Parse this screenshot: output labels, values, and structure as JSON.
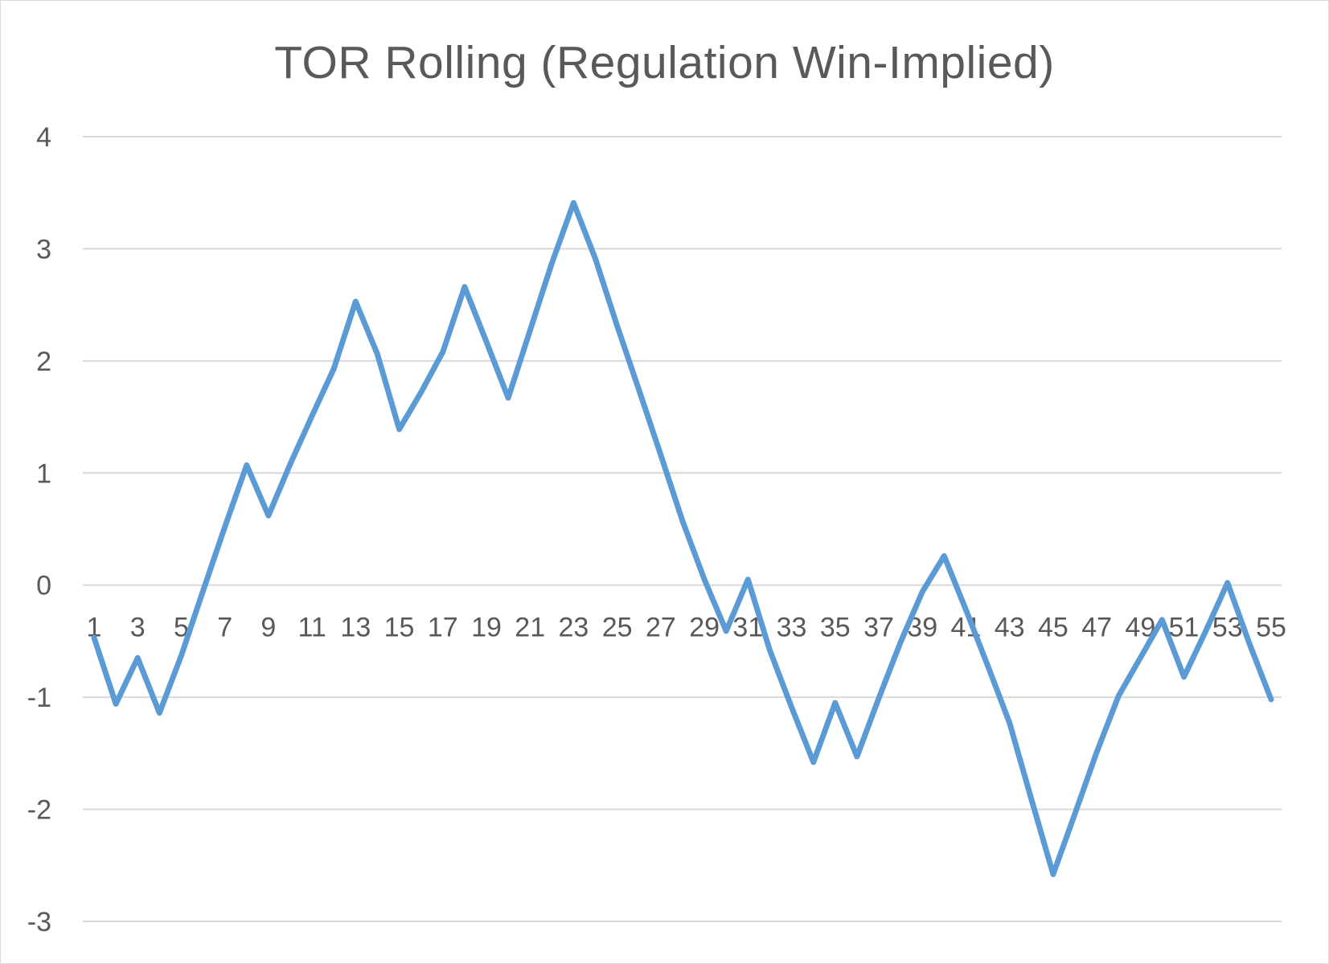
{
  "chart_data": {
    "type": "line",
    "title": "TOR Rolling (Regulation Win-Implied)",
    "xlabel": "",
    "ylabel": "",
    "ylim": [
      -3,
      4
    ],
    "yticks": [
      4,
      3,
      2,
      1,
      0,
      -1,
      -2,
      -3
    ],
    "grid": true,
    "legend": "none",
    "x": [
      1,
      2,
      3,
      4,
      5,
      6,
      7,
      8,
      9,
      10,
      11,
      12,
      13,
      14,
      15,
      16,
      17,
      18,
      19,
      20,
      21,
      22,
      23,
      24,
      25,
      26,
      27,
      28,
      29,
      30,
      31,
      32,
      33,
      34,
      35,
      36,
      37,
      38,
      39,
      40,
      41,
      42,
      43,
      44,
      45,
      46,
      47,
      48,
      49,
      50,
      51,
      52,
      53,
      54,
      55
    ],
    "x_tick_labels": [
      "1",
      "3",
      "5",
      "7",
      "9",
      "11",
      "13",
      "15",
      "17",
      "19",
      "21",
      "23",
      "25",
      "27",
      "29",
      "31",
      "33",
      "35",
      "37",
      "39",
      "41",
      "43",
      "45",
      "47",
      "49",
      "51",
      "53",
      "55"
    ],
    "series": [
      {
        "color": "#5b9bd5",
        "values": [
          -0.47,
          -1.06,
          -0.65,
          -1.14,
          -0.63,
          -0.05,
          0.52,
          1.07,
          0.62,
          1.08,
          1.51,
          1.93,
          2.53,
          2.06,
          1.39,
          1.72,
          2.08,
          2.66,
          2.17,
          1.67,
          2.27,
          2.87,
          3.41,
          2.91,
          2.31,
          1.74,
          1.16,
          0.57,
          0.05,
          -0.41,
          0.05,
          -0.58,
          -1.09,
          -1.58,
          -1.05,
          -1.53,
          -1.01,
          -0.51,
          -0.06,
          0.26,
          -0.22,
          -0.72,
          -1.23,
          -1.91,
          -2.58,
          -2.04,
          -1.49,
          -0.99,
          -0.65,
          -0.31,
          -0.82,
          -0.41,
          0.02,
          -0.52,
          -1.02
        ]
      }
    ]
  }
}
